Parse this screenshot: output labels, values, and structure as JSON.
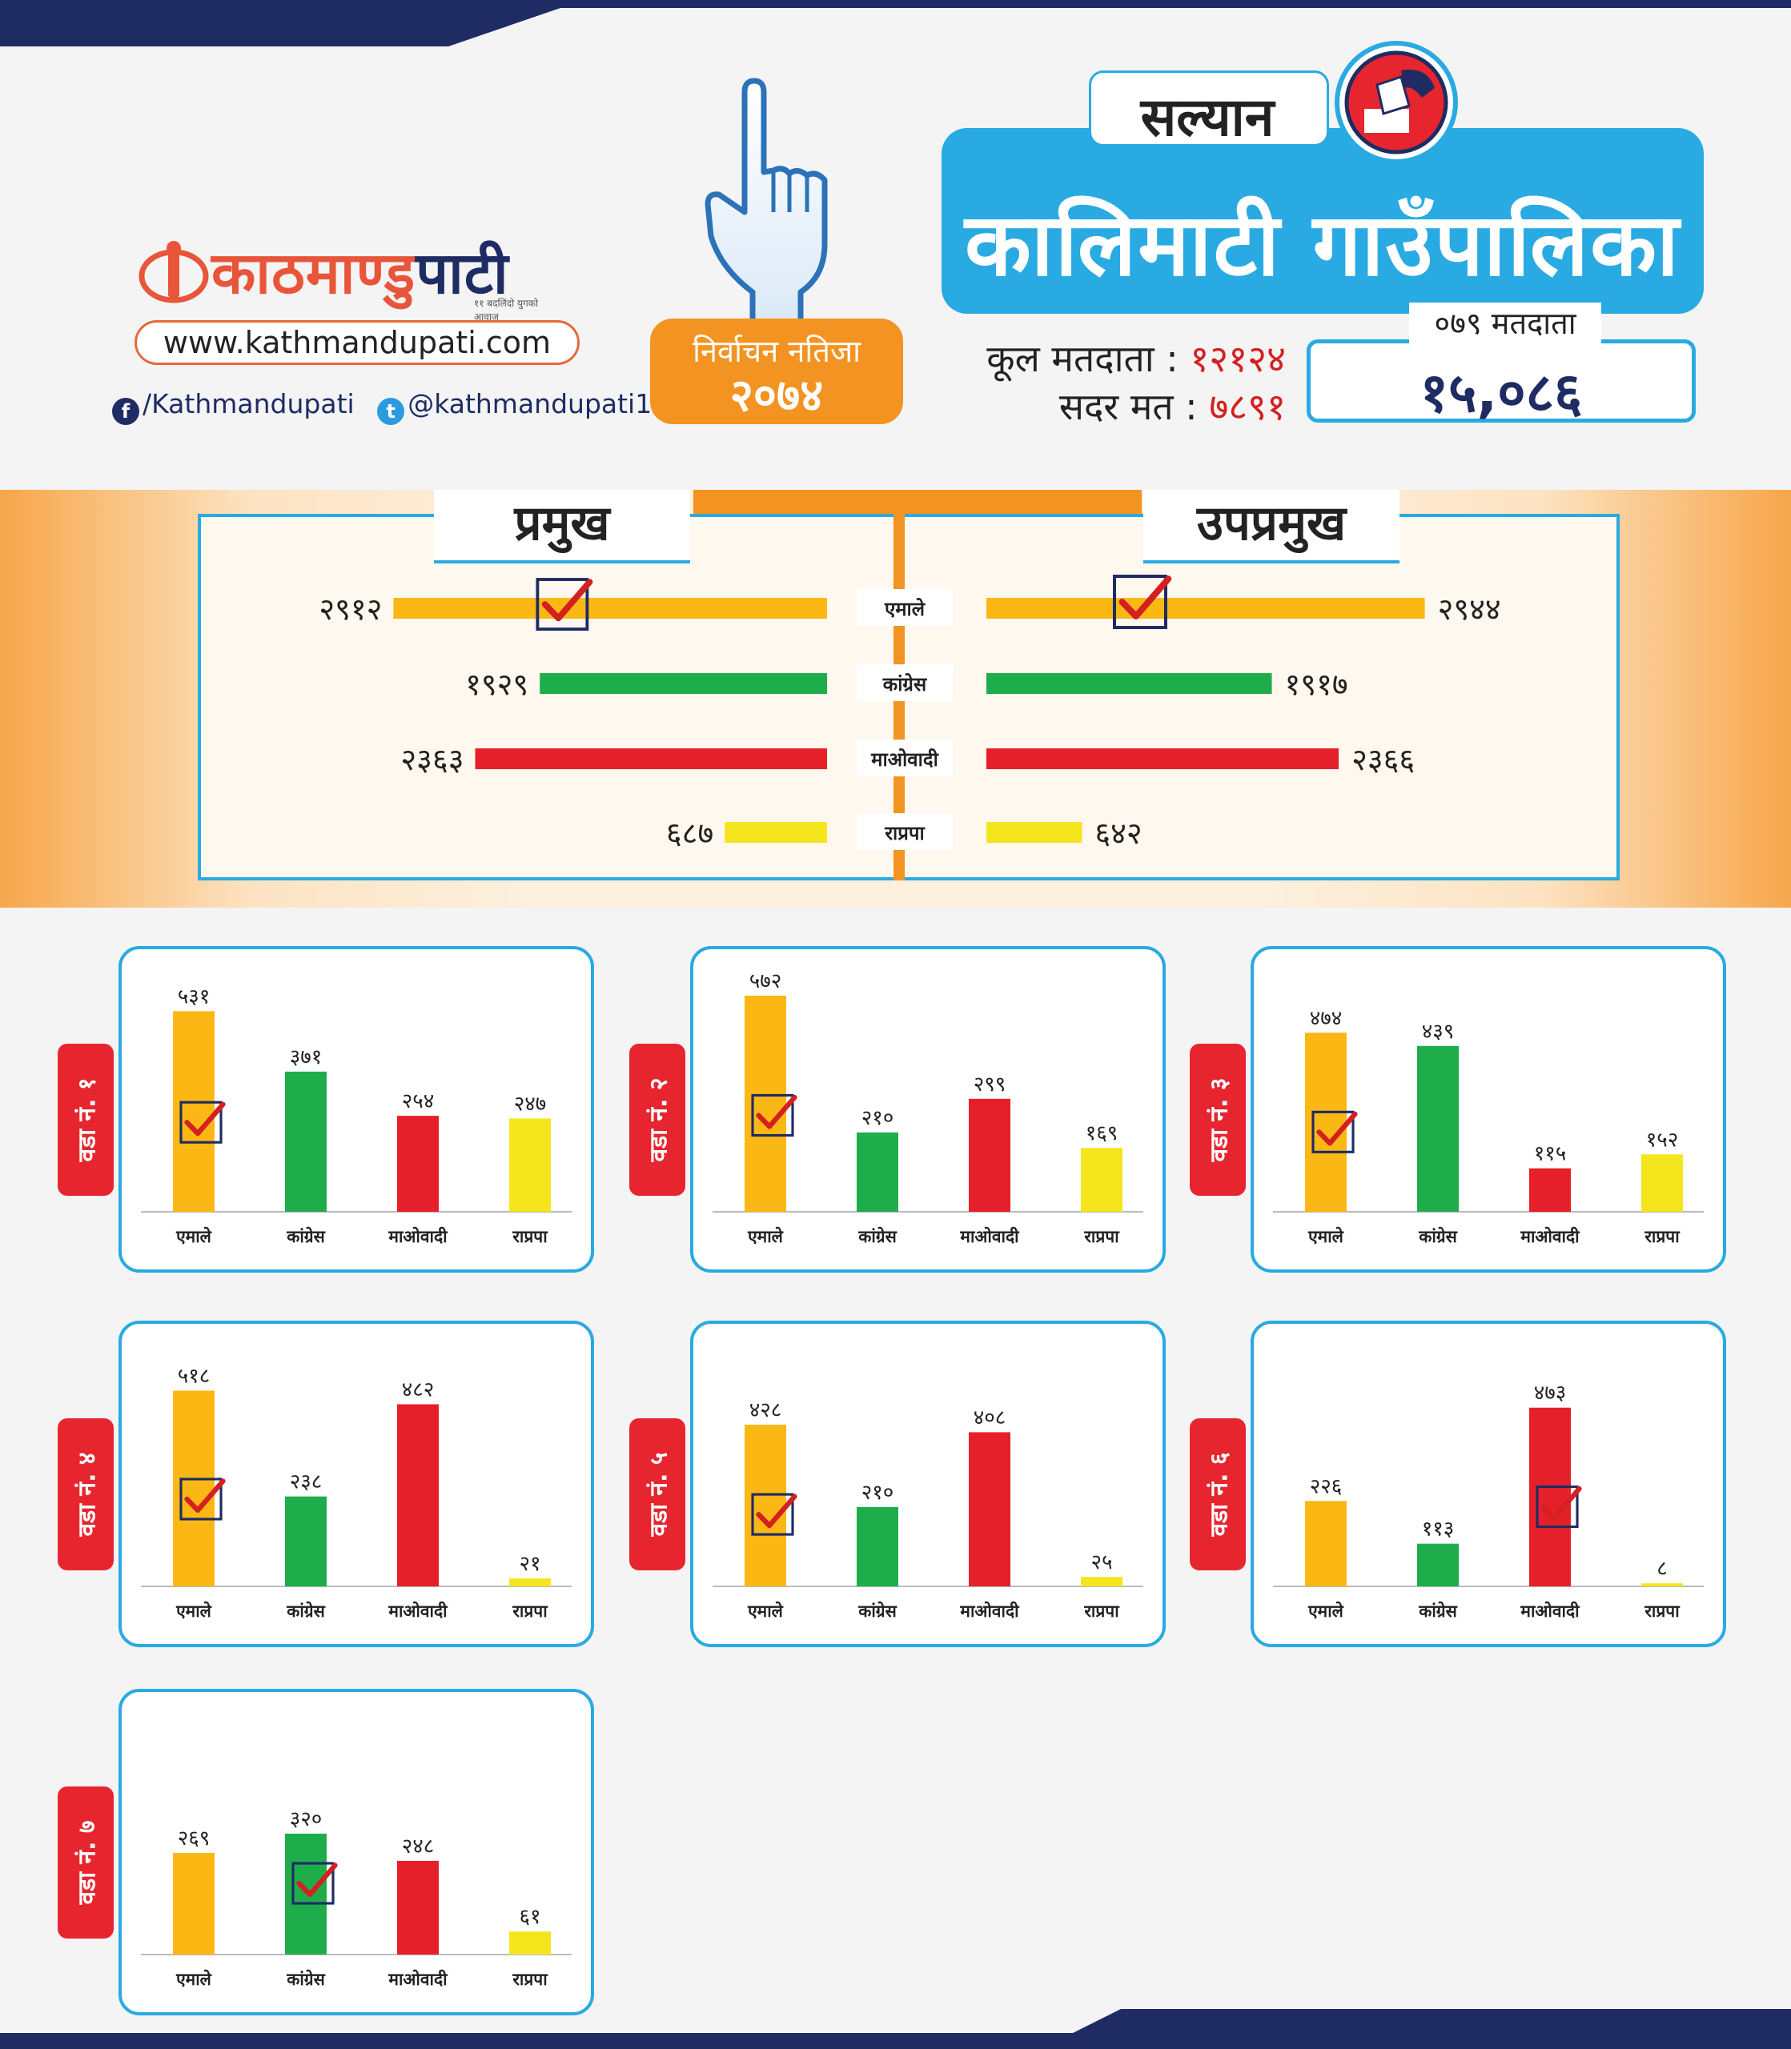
{
  "brand": {
    "logo_text_a": "काठमाण्डु",
    "logo_text_b": "पाटी",
    "tagline": "११ बदलिंदो युगको आवाज",
    "url": "www.kathmandupati.com",
    "facebook": "/Kathmandupati",
    "twitter": "@kathmandupati1"
  },
  "badge": {
    "line1": "निर्वाचन नतिजा",
    "line2": "२०७४"
  },
  "header": {
    "district": "सल्यान",
    "municipality": "कालिमाटी  गाउँपालिका",
    "total_voters_label": "कूल मतदाता :",
    "total_voters_value": "१२१२४",
    "valid_votes_label": "सदर मत :",
    "valid_votes_value": "७८९१",
    "voters_079_caption": "०७९ मतदाता",
    "voters_079_value": "१५,०८६"
  },
  "colors": {
    "एमाले": "#fbb814",
    "कांग्रेस": "#1fad4b",
    "माओवादी": "#e6202a",
    "राप्रपा": "#f5e51c",
    "accent": "#29aae2",
    "orange": "#f39422"
  },
  "chart_data": [
    {
      "type": "bar",
      "title": "प्रमुख",
      "categories": [
        "एमाले",
        "कांग्रेस",
        "माओवादी",
        "राप्रपा"
      ],
      "values": [
        2912,
        1929,
        2363,
        687
      ],
      "value_labels": [
        "२९१२",
        "१९२९",
        "२३६३",
        "६८७"
      ],
      "winner": "एमाले"
    },
    {
      "type": "bar",
      "title": "उपप्रमुख",
      "categories": [
        "एमाले",
        "कांग्रेस",
        "माओवादी",
        "राप्रपा"
      ],
      "values": [
        2944,
        1917,
        2366,
        642
      ],
      "value_labels": [
        "२९४४",
        "१९१७",
        "२३६६",
        "६४२"
      ],
      "winner": "एमाले"
    },
    {
      "type": "bar",
      "title": "वडा नं. १",
      "categories": [
        "एमाले",
        "कांग्रेस",
        "माओवादी",
        "राप्रपा"
      ],
      "values": [
        531,
        371,
        254,
        247
      ],
      "value_labels": [
        "५३१",
        "३७१",
        "२५४",
        "२४७"
      ],
      "winner": "एमाले"
    },
    {
      "type": "bar",
      "title": "वडा नं. २",
      "categories": [
        "एमाले",
        "कांग्रेस",
        "माओवादी",
        "राप्रपा"
      ],
      "values": [
        572,
        210,
        299,
        169
      ],
      "value_labels": [
        "५७२",
        "२१०",
        "२९९",
        "१६९"
      ],
      "winner": "एमाले"
    },
    {
      "type": "bar",
      "title": "वडा नं. ३",
      "categories": [
        "एमाले",
        "कांग्रेस",
        "माओवादी",
        "राप्रपा"
      ],
      "values": [
        474,
        439,
        115,
        152
      ],
      "value_labels": [
        "४७४",
        "४३९",
        "११५",
        "१५२"
      ],
      "winner": "एमाले"
    },
    {
      "type": "bar",
      "title": "वडा नं. ४",
      "categories": [
        "एमाले",
        "कांग्रेस",
        "माओवादी",
        "राप्रपा"
      ],
      "values": [
        518,
        238,
        482,
        21
      ],
      "value_labels": [
        "५१८",
        "२३८",
        "४८२",
        "२१"
      ],
      "winner": "एमाले"
    },
    {
      "type": "bar",
      "title": "वडा नं. ५",
      "categories": [
        "एमाले",
        "कांग्रेस",
        "माओवादी",
        "राप्रपा"
      ],
      "values": [
        428,
        210,
        408,
        25
      ],
      "value_labels": [
        "४२८",
        "२१०",
        "४०८",
        "२५"
      ],
      "winner": "एमाले"
    },
    {
      "type": "bar",
      "title": "वडा नं. ६",
      "categories": [
        "एमाले",
        "कांग्रेस",
        "माओवादी",
        "राप्रपा"
      ],
      "values": [
        226,
        113,
        473,
        8
      ],
      "value_labels": [
        "२२६",
        "११३",
        "४७३",
        "८"
      ],
      "winner": "माओवादी"
    },
    {
      "type": "bar",
      "title": "वडा नं. ७",
      "categories": [
        "एमाले",
        "कांग्रेस",
        "माओवादी",
        "राप्रपा"
      ],
      "values": [
        269,
        320,
        248,
        61
      ],
      "value_labels": [
        "२६९",
        "३२०",
        "२४८",
        "६१"
      ],
      "winner": "कांग्रेस"
    }
  ]
}
